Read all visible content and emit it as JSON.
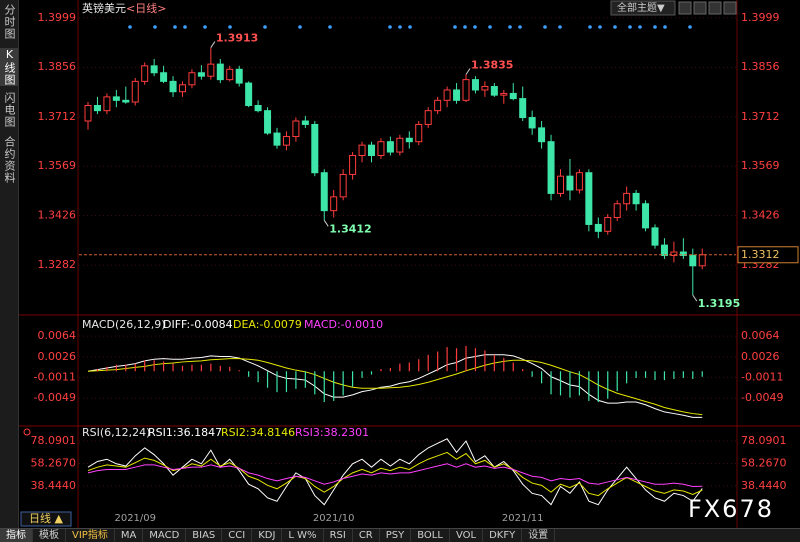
{
  "header": {
    "title": "英镑美元",
    "period": "<日线>",
    "theme": "全部主题▼"
  },
  "sidebar": [
    "分时图",
    "K线图",
    "闪电图",
    "合约资料"
  ],
  "period_button": "日线 ▲",
  "toolbar": [
    "指标",
    "模板",
    "VIP指标",
    "MA",
    "MACD",
    "BIAS",
    "CCI",
    "KDJ",
    "L W%",
    "RSI",
    "CR",
    "PSY",
    "BOLL",
    "VOL",
    "DKFY",
    "设置"
  ],
  "watermark": "FX678",
  "chart_data": [
    {
      "type": "candlestick",
      "categories": [
        null,
        null,
        null,
        null,
        null,
        "2021/09",
        null,
        null,
        null,
        null,
        null,
        null,
        null,
        null,
        null,
        null,
        null,
        null,
        null,
        null,
        null,
        null,
        null,
        null,
        null,
        null,
        "2021/10",
        null,
        null,
        null,
        null,
        null,
        null,
        null,
        null,
        null,
        null,
        null,
        null,
        null,
        null,
        null,
        null,
        null,
        null,
        null,
        "2021/11",
        null,
        null,
        null,
        null,
        null,
        null,
        null,
        null,
        null,
        null,
        null,
        null,
        null,
        null,
        null,
        null,
        null,
        null,
        null
      ],
      "open": [
        1.37,
        1.3745,
        1.373,
        1.377,
        1.376,
        1.3755,
        1.3815,
        1.386,
        1.384,
        1.3815,
        1.3785,
        1.3805,
        1.384,
        1.383,
        1.3865,
        1.382,
        1.385,
        1.381,
        1.3745,
        1.373,
        1.3665,
        1.363,
        1.3655,
        1.37,
        1.369,
        1.355,
        1.344,
        1.348,
        1.3545,
        1.36,
        1.363,
        1.36,
        1.364,
        1.361,
        1.365,
        1.364,
        1.369,
        1.373,
        1.376,
        1.379,
        1.376,
        1.382,
        1.379,
        1.38,
        1.3775,
        1.378,
        1.3765,
        1.371,
        1.368,
        1.364,
        1.349,
        1.354,
        1.35,
        1.355,
        1.34,
        1.338,
        1.342,
        1.346,
        1.349,
        1.346,
        1.339,
        1.334,
        1.331,
        1.332,
        1.331,
        1.328
      ],
      "high": [
        1.3755,
        1.377,
        1.378,
        1.379,
        1.38,
        1.3825,
        1.387,
        1.388,
        1.386,
        1.383,
        1.3815,
        1.385,
        1.3862,
        1.3913,
        1.388,
        1.386,
        1.386,
        1.3815,
        1.376,
        1.374,
        1.368,
        1.367,
        1.371,
        1.3715,
        1.37,
        1.356,
        1.35,
        1.356,
        1.361,
        1.364,
        1.364,
        1.365,
        1.3655,
        1.366,
        1.367,
        1.37,
        1.374,
        1.377,
        1.38,
        1.381,
        1.3835,
        1.383,
        1.3815,
        1.381,
        1.379,
        1.381,
        1.38,
        1.373,
        1.37,
        1.366,
        1.356,
        1.359,
        1.356,
        1.356,
        1.342,
        1.343,
        1.347,
        1.351,
        1.35,
        1.347,
        1.34,
        1.336,
        1.335,
        1.336,
        1.333,
        1.333
      ],
      "low": [
        1.3675,
        1.372,
        1.372,
        1.374,
        1.375,
        1.3745,
        1.3805,
        1.383,
        1.381,
        1.377,
        1.377,
        1.3795,
        1.382,
        1.382,
        1.381,
        1.3815,
        1.38,
        1.374,
        1.3725,
        1.366,
        1.362,
        1.3615,
        1.364,
        1.368,
        1.354,
        1.3412,
        1.342,
        1.347,
        1.353,
        1.358,
        1.358,
        1.359,
        1.36,
        1.36,
        1.362,
        1.363,
        1.368,
        1.372,
        1.374,
        1.375,
        1.3755,
        1.378,
        1.377,
        1.377,
        1.375,
        1.376,
        1.37,
        1.366,
        1.362,
        1.347,
        1.348,
        1.347,
        1.349,
        1.338,
        1.336,
        1.337,
        1.341,
        1.344,
        1.344,
        1.338,
        1.333,
        1.33,
        1.329,
        1.33,
        1.3195,
        1.327
      ],
      "close": [
        1.3745,
        1.373,
        1.377,
        1.376,
        1.3755,
        1.3815,
        1.386,
        1.384,
        1.3815,
        1.3785,
        1.3805,
        1.384,
        1.383,
        1.3865,
        1.382,
        1.385,
        1.381,
        1.3745,
        1.373,
        1.3665,
        1.363,
        1.3655,
        1.37,
        1.369,
        1.355,
        1.344,
        1.348,
        1.3545,
        1.36,
        1.363,
        1.36,
        1.364,
        1.361,
        1.365,
        1.364,
        1.369,
        1.373,
        1.376,
        1.379,
        1.376,
        1.382,
        1.379,
        1.38,
        1.3775,
        1.378,
        1.3765,
        1.371,
        1.368,
        1.364,
        1.349,
        1.354,
        1.35,
        1.355,
        1.34,
        1.338,
        1.342,
        1.346,
        1.349,
        1.346,
        1.339,
        1.334,
        1.331,
        1.332,
        1.331,
        1.328,
        1.3312
      ],
      "up_color": "#ff3c3c",
      "down_color": "#3de6a8",
      "ylim": [
        1.3146,
        1.4022
      ],
      "yticks": [
        1.3999,
        1.3856,
        1.3712,
        1.3569,
        1.3426,
        1.3282
      ],
      "grid": true,
      "annotations": [
        1.3913,
        1.3835,
        1.3412,
        1.3195
      ],
      "last_price": 1.3312
    },
    {
      "type": "macd",
      "title": "MACD(26,12,9)",
      "ylim": [
        -0.0096,
        0.0097
      ],
      "yticks": [
        0.0064,
        0.0026,
        -0.0011,
        -0.0049
      ],
      "grid": true,
      "up_color": "#ff3c3c",
      "down_color": "#3de6a8",
      "series": [
        {
          "name": "DIFF:-0.0084",
          "color": "#ffffff",
          "style": "line",
          "values": [
            0.0,
            0.0003,
            0.0006,
            0.0009,
            0.0011,
            0.0014,
            0.0019,
            0.0022,
            0.0023,
            0.0022,
            0.0022,
            0.0024,
            0.0025,
            0.0028,
            0.0027,
            0.0027,
            0.0024,
            0.0017,
            0.001,
            0.0001,
            -0.0008,
            -0.0013,
            -0.0014,
            -0.0016,
            -0.0027,
            -0.0041,
            -0.0047,
            -0.0047,
            -0.0043,
            -0.0037,
            -0.0034,
            -0.0029,
            -0.0027,
            -0.0022,
            -0.0019,
            -0.0013,
            -0.0005,
            0.0003,
            0.0012,
            0.0016,
            0.0024,
            0.0027,
            0.003,
            0.003,
            0.003,
            0.0028,
            0.0022,
            0.0014,
            0.0005,
            -0.001,
            -0.0017,
            -0.0025,
            -0.0028,
            -0.0042,
            -0.0053,
            -0.0058,
            -0.0058,
            -0.0056,
            -0.0056,
            -0.0061,
            -0.0068,
            -0.0074,
            -0.0077,
            -0.008,
            -0.0084,
            -0.0084
          ]
        },
        {
          "name": "DEA:-0.0079",
          "color": "#e6e600",
          "style": "line",
          "values": [
            0.0,
            0.0001,
            0.0002,
            0.0003,
            0.0005,
            0.0007,
            0.0009,
            0.0012,
            0.0014,
            0.0015,
            0.0017,
            0.0018,
            0.0019,
            0.0021,
            0.0022,
            0.0023,
            0.0023,
            0.0022,
            0.002,
            0.0016,
            0.0011,
            0.0006,
            0.0002,
            -0.0001,
            -0.0006,
            -0.0013,
            -0.002,
            -0.0025,
            -0.0029,
            -0.0031,
            -0.0031,
            -0.0031,
            -0.003,
            -0.0029,
            -0.0027,
            -0.0024,
            -0.002,
            -0.0015,
            -0.001,
            -0.0005,
            0.0001,
            0.0006,
            0.0011,
            0.0015,
            0.0018,
            0.002,
            0.002,
            0.0019,
            0.0016,
            0.0011,
            0.0005,
            -0.0001,
            -0.0006,
            -0.0015,
            -0.0025,
            -0.0033,
            -0.004,
            -0.0045,
            -0.005,
            -0.0055,
            -0.006,
            -0.0066,
            -0.007,
            -0.0074,
            -0.0077,
            -0.0079
          ]
        },
        {
          "name": "MACD:-0.0010",
          "color": "#ff40ff",
          "style": "histogram",
          "values": [
            0.0,
            0.0004,
            0.0008,
            0.0012,
            0.0012,
            0.0014,
            0.002,
            0.002,
            0.0018,
            0.0014,
            0.001,
            0.0012,
            0.0012,
            0.0014,
            0.001,
            0.0008,
            0.0002,
            -0.001,
            -0.002,
            -0.003,
            -0.0038,
            -0.0038,
            -0.0032,
            -0.003,
            -0.0042,
            -0.0056,
            -0.0054,
            -0.0044,
            -0.0028,
            -0.0012,
            -0.0006,
            0.0004,
            0.0006,
            0.0014,
            0.0016,
            0.0022,
            0.003,
            0.0036,
            0.0044,
            0.0042,
            0.0046,
            0.0042,
            0.0038,
            0.003,
            0.0024,
            0.0016,
            0.0004,
            -0.001,
            -0.0022,
            -0.0042,
            -0.0044,
            -0.0048,
            -0.0044,
            -0.0054,
            -0.0056,
            -0.005,
            -0.0036,
            -0.0022,
            -0.0012,
            -0.0012,
            -0.0016,
            -0.0016,
            -0.0014,
            -0.0012,
            -0.0014,
            -0.001
          ]
        }
      ]
    },
    {
      "type": "rsi",
      "title": "RSI(6,12,24)",
      "ylim": [
        17.3,
        89.5
      ],
      "yticks": [
        78.0901,
        {
          "value": 58.267,
          "label": "58.2670"
        },
        {
          "value": 38.444,
          "label": "38.4440"
        }
      ],
      "grid": true,
      "series": [
        {
          "name": "RSI1:36.1847",
          "color": "#ffffff",
          "values": [
            55,
            60,
            62,
            58,
            56,
            65,
            72,
            66,
            58,
            48,
            55,
            62,
            58,
            70,
            55,
            62,
            52,
            40,
            36,
            28,
            25,
            38,
            50,
            45,
            30,
            22,
            35,
            48,
            58,
            62,
            55,
            62,
            56,
            62,
            58,
            66,
            72,
            76,
            80,
            68,
            78,
            60,
            65,
            55,
            60,
            52,
            40,
            32,
            30,
            22,
            38,
            32,
            42,
            25,
            22,
            35,
            45,
            55,
            45,
            35,
            28,
            25,
            32,
            30,
            25,
            36.1847
          ]
        },
        {
          "name": "RSI2:34.8146",
          "color": "#e6e600",
          "values": [
            52,
            55,
            57,
            56,
            55,
            59,
            63,
            61,
            57,
            52,
            54,
            58,
            56,
            62,
            56,
            59,
            54,
            47,
            44,
            39,
            36,
            41,
            47,
            45,
            38,
            33,
            38,
            45,
            50,
            53,
            50,
            54,
            52,
            55,
            53,
            58,
            62,
            65,
            68,
            62,
            67,
            58,
            61,
            55,
            58,
            53,
            46,
            41,
            39,
            33,
            40,
            37,
            41,
            32,
            30,
            36,
            41,
            46,
            42,
            38,
            34,
            32,
            35,
            34,
            31,
            34.8146
          ]
        },
        {
          "name": "RSI3:38.2301",
          "color": "#ff40ff",
          "values": [
            50,
            52,
            53,
            53,
            53,
            55,
            57,
            57,
            55,
            53,
            54,
            55,
            55,
            57,
            55,
            56,
            54,
            50,
            48,
            45,
            43,
            45,
            47,
            46,
            43,
            40,
            42,
            45,
            47,
            49,
            48,
            50,
            49,
            50,
            50,
            52,
            54,
            56,
            58,
            55,
            58,
            55,
            56,
            54,
            55,
            53,
            50,
            47,
            46,
            43,
            45,
            44,
            45,
            41,
            40,
            42,
            44,
            46,
            44,
            42,
            40,
            40,
            41,
            40,
            38,
            38.2301
          ]
        }
      ]
    }
  ]
}
